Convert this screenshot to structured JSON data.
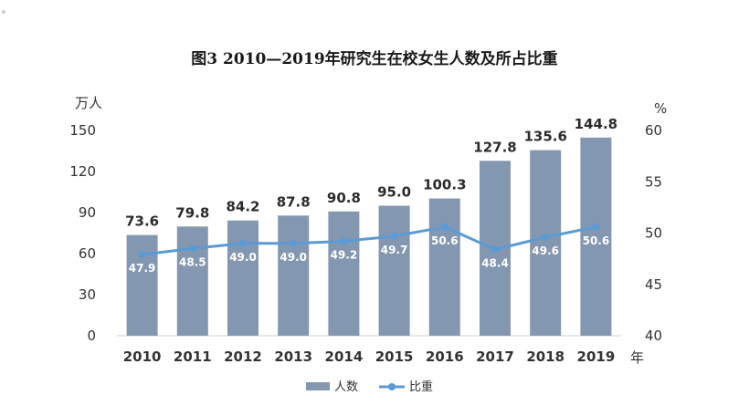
{
  "corner_mark": "。",
  "chart_data": {
    "type": "bar+line",
    "title": "图3   2010—2019年研究生在校女生人数及所占比重",
    "categories": [
      "2010",
      "2011",
      "2012",
      "2013",
      "2014",
      "2015",
      "2016",
      "2017",
      "2018",
      "2019"
    ],
    "x_unit": "年",
    "left_axis": {
      "unit": "万人",
      "ylim": [
        0,
        150
      ],
      "ticks": [
        "0",
        "30",
        "60",
        "90",
        "120",
        "150"
      ]
    },
    "right_axis": {
      "unit": "%",
      "ylim": [
        40,
        60
      ],
      "ticks": [
        "40",
        "45",
        "50",
        "55",
        "60"
      ]
    },
    "series": [
      {
        "name": "人数",
        "kind": "bar",
        "axis": "left",
        "color": "#8497b0",
        "values": [
          73.6,
          79.8,
          84.2,
          87.8,
          90.8,
          95.0,
          100.3,
          127.8,
          135.6,
          144.8
        ],
        "labels": [
          "73.6",
          "79.8",
          "84.2",
          "87.8",
          "90.8",
          "95.0",
          "100.3",
          "127.8",
          "135.6",
          "144.8"
        ]
      },
      {
        "name": "比重",
        "kind": "line",
        "axis": "right",
        "color": "#5b9bd5",
        "values": [
          47.9,
          48.5,
          49.0,
          49.0,
          49.2,
          49.7,
          50.6,
          48.4,
          49.6,
          50.6
        ],
        "labels": [
          "47.9",
          "48.5",
          "49.0",
          "49.0",
          "49.2",
          "49.7",
          "50.6",
          "48.4",
          "49.6",
          "50.6"
        ]
      }
    ],
    "grid": false,
    "legend_position": "bottom-center"
  }
}
